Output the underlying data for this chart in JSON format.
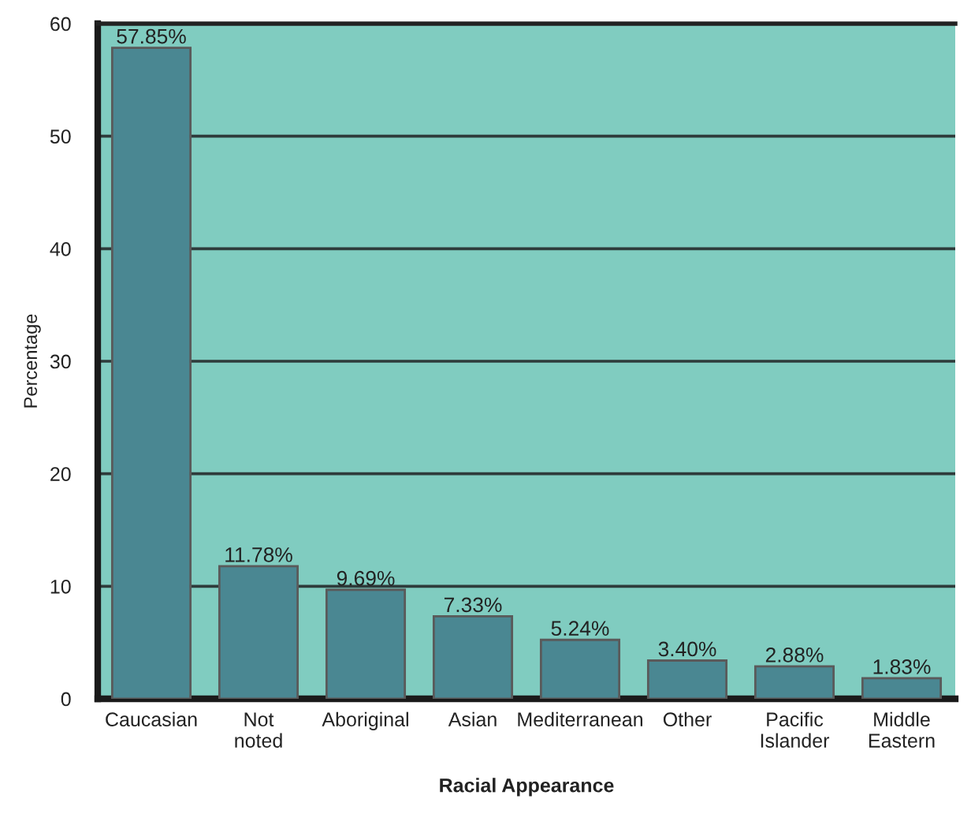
{
  "chart_data": {
    "type": "bar",
    "xlabel": "Racial Appearance",
    "ylabel": "Percentage",
    "categories": [
      "Caucasian",
      "Not\nnoted",
      "Aboriginal",
      "Asian",
      "Mediterranean",
      "Other",
      "Pacific\nIslander",
      "Middle\nEastern"
    ],
    "values": [
      57.85,
      11.78,
      9.69,
      7.33,
      5.24,
      3.4,
      2.88,
      1.83
    ],
    "value_labels": [
      "57.85%",
      "11.78%",
      "9.69%",
      "7.33%",
      "5.24%",
      "3.40%",
      "2.88%",
      "1.83%"
    ],
    "color": "#4a8792",
    "ylim": [
      0,
      60
    ],
    "yticks": [
      0,
      10,
      20,
      30,
      40,
      50,
      60
    ],
    "grid": "y"
  }
}
